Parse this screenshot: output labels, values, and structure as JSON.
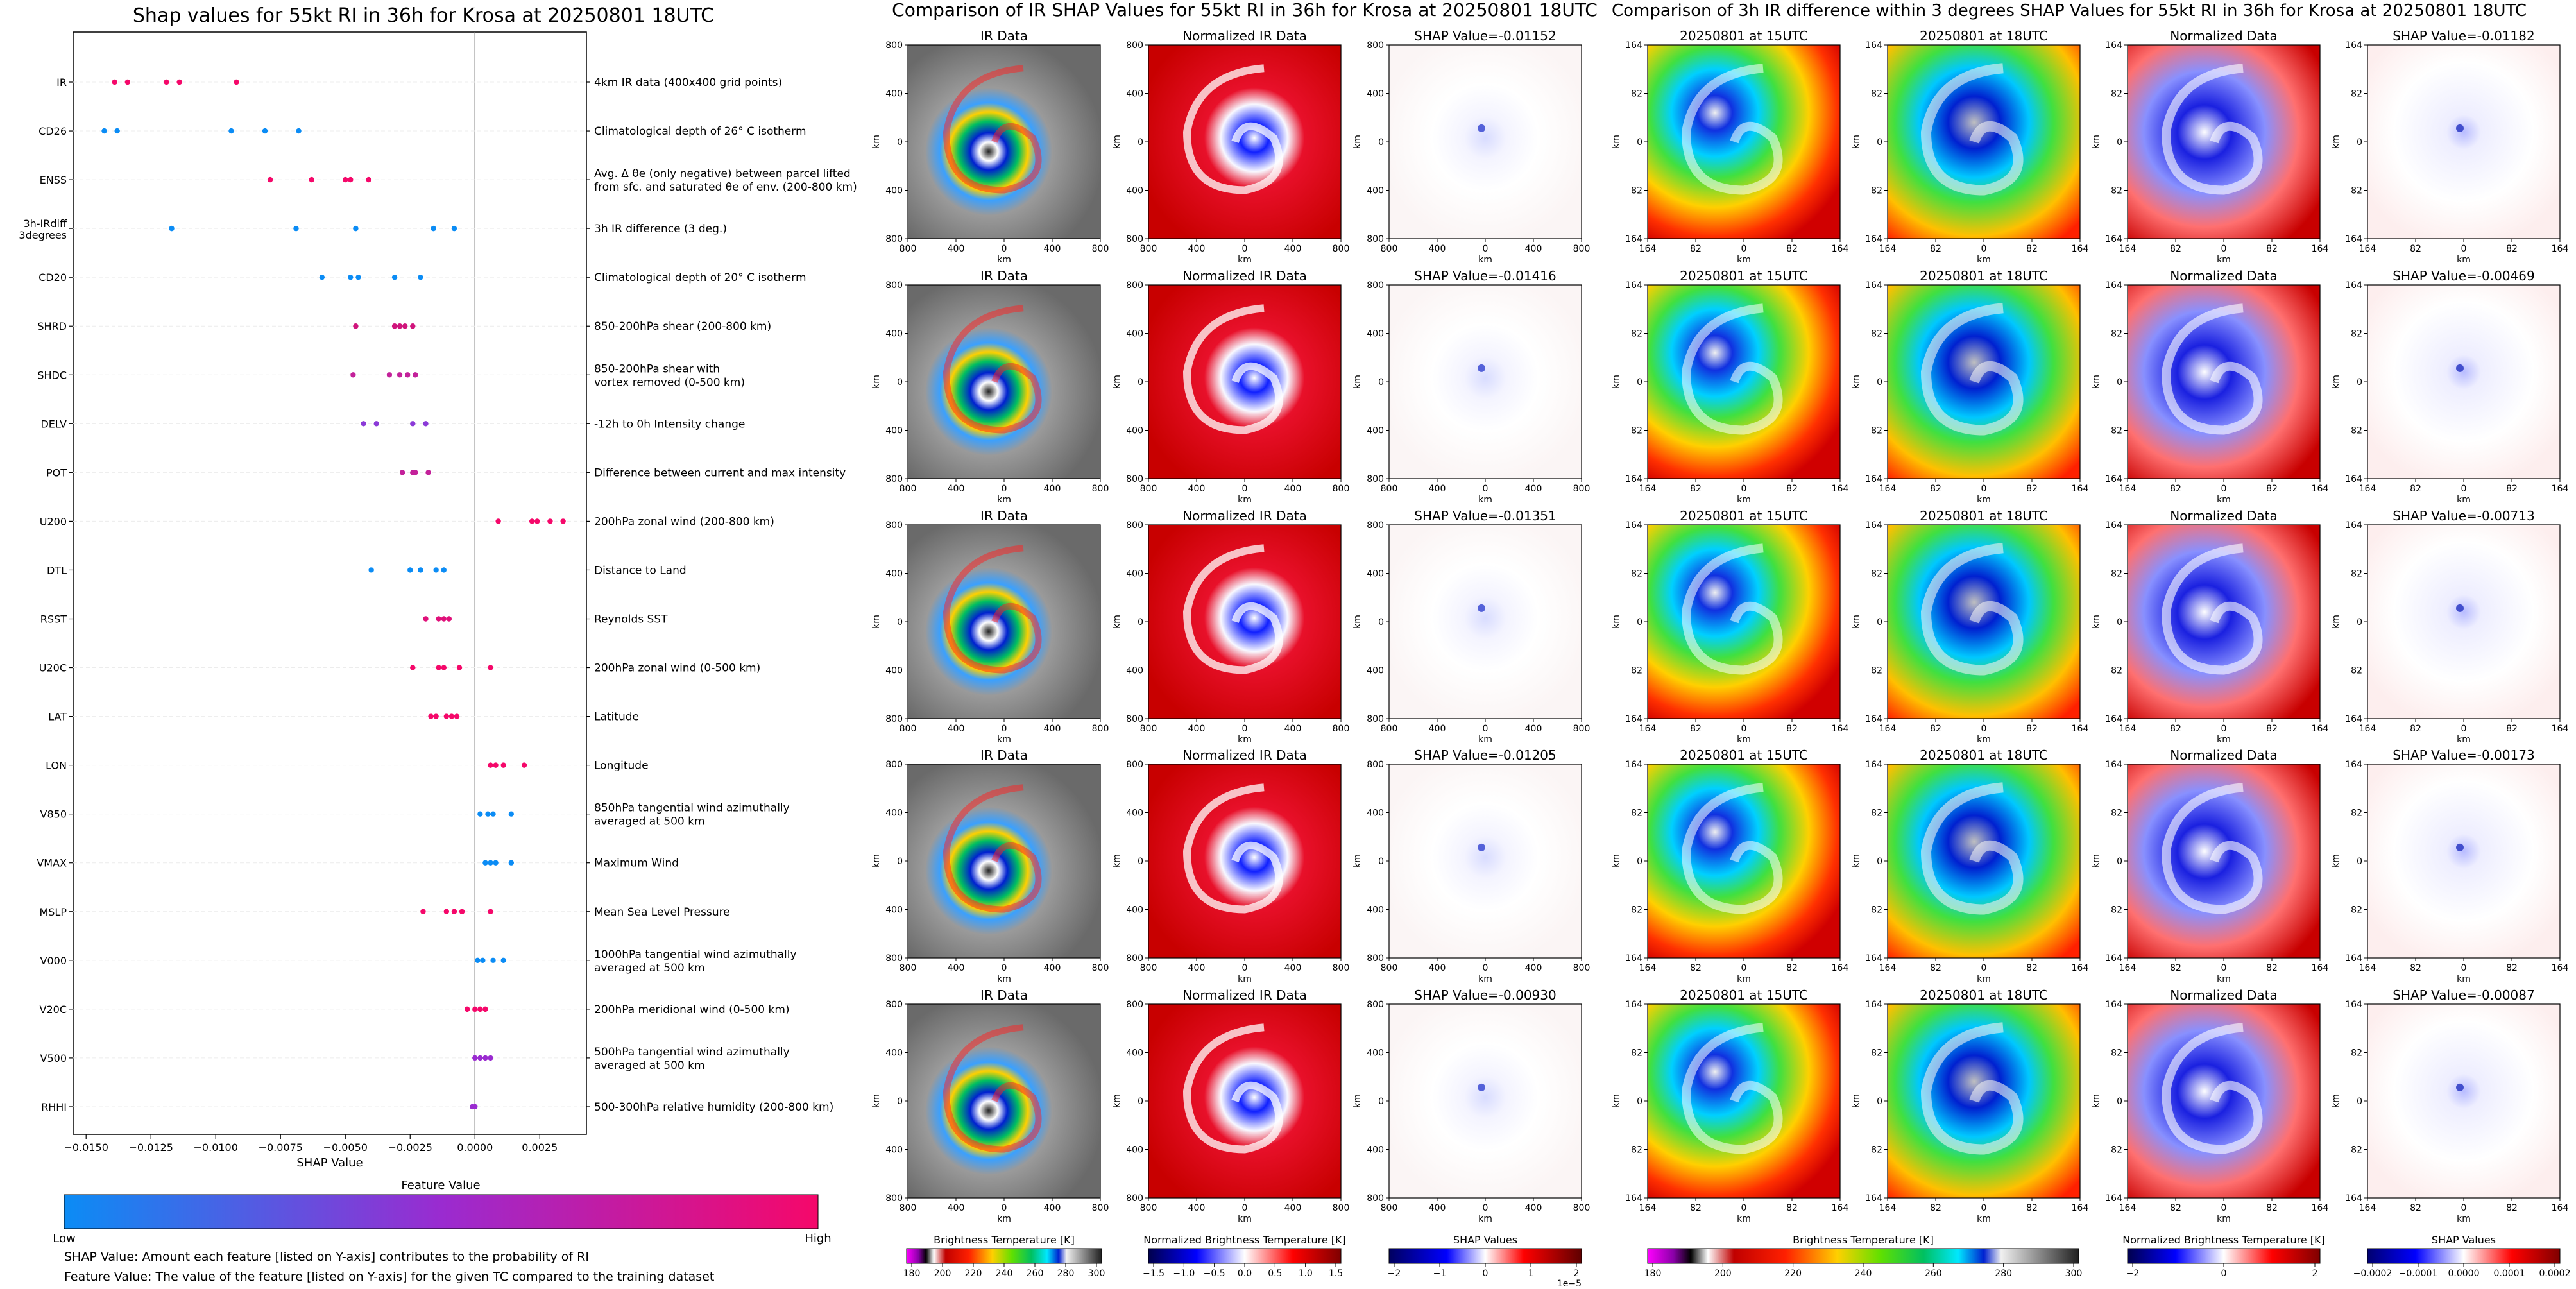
{
  "titles": {
    "shap": "Shap values for 55kt RI in 36h for Krosa at 20250801 18UTC",
    "ir": "Comparison of IR SHAP Values for 55kt RI in 36h for Krosa at 20250801 18UTC",
    "diff": "Comparison of 3h IR difference within 3 degrees SHAP Values for 55kt RI in 36h for Krosa at 20250801 18UTC"
  },
  "chart_data": [
    {
      "type": "scatter",
      "title": "Shap values for 55kt RI in 36h for Krosa at 20250801 18UTC",
      "xlabel": "SHAP Value",
      "ylabel": "",
      "xlim": [
        -0.0155,
        0.0043
      ],
      "xticks": [
        "−0.0150",
        "−0.0125",
        "−0.0100",
        "−0.0075",
        "−0.0050",
        "−0.0025",
        "0.0000",
        "0.0025"
      ],
      "xtick_values": [
        -0.015,
        -0.0125,
        -0.01,
        -0.0075,
        -0.005,
        -0.0025,
        0,
        0.0025
      ],
      "colorbar": {
        "title": "Feature Value",
        "low": "Low",
        "high": "High",
        "colors": [
          "#0b8cf5",
          "#9a2bd0",
          "#f5086a"
        ]
      },
      "notes": [
        "SHAP Value: Amount each feature [listed on Y-axis] contributes to the probability of RI",
        "Feature Value: The value of the feature [listed on Y-axis] for the given TC compared to the training dataset"
      ],
      "features": [
        {
          "name": "IR",
          "desc": [
            "4km IR data (400x400 grid points)"
          ],
          "shap": [
            -0.0139,
            -0.0134,
            -0.0119,
            -0.0114,
            -0.0092
          ],
          "colors": [
            "#f5086a",
            "#f5086a",
            "#f5086a",
            "#f5086a",
            "#f5086a"
          ]
        },
        {
          "name": "CD26",
          "desc": [
            "Climatological depth of 26° C isotherm"
          ],
          "shap": [
            -0.0143,
            -0.0138,
            -0.0094,
            -0.0081,
            -0.0068
          ],
          "colors": [
            "#0b8cf5",
            "#0b8cf5",
            "#0b8cf5",
            "#0b8cf5",
            "#0b8cf5"
          ]
        },
        {
          "name": "ENSS",
          "desc": [
            "Avg. Δ θe (only negative) between parcel lifted",
            "from sfc. and saturated θe of env. (200-800 km)"
          ],
          "shap": [
            -0.0079,
            -0.0063,
            -0.005,
            -0.0048,
            -0.0041
          ],
          "colors": [
            "#f5086a",
            "#f5086a",
            "#f5086a",
            "#f5086a",
            "#f5086a"
          ]
        },
        {
          "name": "3h-IRdiff 3degrees",
          "desc": [
            "3h IR difference (3 deg.)"
          ],
          "shap": [
            -0.0117,
            -0.0069,
            -0.0046,
            -0.0016,
            -0.0008
          ],
          "colors": [
            "#0b8cf5",
            "#0b8cf5",
            "#0b8cf5",
            "#0b8cf5",
            "#0b8cf5"
          ]
        },
        {
          "name": "CD20",
          "desc": [
            "Climatological depth of 20° C isotherm"
          ],
          "shap": [
            -0.0059,
            -0.0048,
            -0.0045,
            -0.0031,
            -0.0021
          ],
          "colors": [
            "#0b8cf5",
            "#0b8cf5",
            "#0b8cf5",
            "#0b8cf5",
            "#0b8cf5"
          ]
        },
        {
          "name": "SHRD",
          "desc": [
            "850-200hPa shear (200-800 km)"
          ],
          "shap": [
            -0.0046,
            -0.0031,
            -0.0029,
            -0.0027,
            -0.0024
          ],
          "colors": [
            "#d0157c",
            "#d0157c",
            "#d0157c",
            "#d0157c",
            "#d0157c"
          ]
        },
        {
          "name": "SHDC",
          "desc": [
            "850-200hPa shear with",
            "vortex removed (0-500 km)"
          ],
          "shap": [
            -0.0047,
            -0.0033,
            -0.0029,
            -0.0026,
            -0.0023
          ],
          "colors": [
            "#c3219a",
            "#c3219a",
            "#c3219a",
            "#c3219a",
            "#c3219a"
          ]
        },
        {
          "name": "DELV",
          "desc": [
            "-12h to 0h Intensity change"
          ],
          "shap": [
            -0.0043,
            -0.0038,
            -0.0024,
            -0.0019
          ],
          "colors": [
            "#8b3ad8",
            "#8b3ad8",
            "#8b3ad8",
            "#8b3ad8"
          ]
        },
        {
          "name": "POT",
          "desc": [
            "Difference between current and max intensity"
          ],
          "shap": [
            -0.0028,
            -0.0024,
            -0.0023,
            -0.0018
          ],
          "colors": [
            "#c3219a",
            "#c3219a",
            "#c3219a",
            "#c3219a"
          ]
        },
        {
          "name": "U200",
          "desc": [
            "200hPa zonal wind (200-800 km)"
          ],
          "shap": [
            0.0009,
            0.0022,
            0.0024,
            0.0029,
            0.0034
          ],
          "colors": [
            "#f5086a",
            "#f5086a",
            "#f5086a",
            "#f5086a",
            "#f5086a"
          ]
        },
        {
          "name": "DTL",
          "desc": [
            "Distance to Land"
          ],
          "shap": [
            -0.004,
            -0.0025,
            -0.0021,
            -0.0015,
            -0.0012
          ],
          "colors": [
            "#0b8cf5",
            "#0b8cf5",
            "#0b8cf5",
            "#0b8cf5",
            "#0b8cf5"
          ]
        },
        {
          "name": "RSST",
          "desc": [
            "Reynolds SST"
          ],
          "shap": [
            -0.0019,
            -0.0014,
            -0.0012,
            -0.001
          ],
          "colors": [
            "#e0107a",
            "#e0107a",
            "#e0107a",
            "#e0107a"
          ]
        },
        {
          "name": "U20C",
          "desc": [
            "200hPa zonal wind (0-500 km)"
          ],
          "shap": [
            -0.0024,
            -0.0014,
            -0.0012,
            -0.0006,
            0.0006
          ],
          "colors": [
            "#f5086a",
            "#f5086a",
            "#f5086a",
            "#f5086a",
            "#f5086a"
          ]
        },
        {
          "name": "LAT",
          "desc": [
            "Latitude"
          ],
          "shap": [
            -0.0017,
            -0.0015,
            -0.0011,
            -0.0009,
            -0.0007
          ],
          "colors": [
            "#f5086a",
            "#f5086a",
            "#f5086a",
            "#f5086a",
            "#f5086a"
          ]
        },
        {
          "name": "LON",
          "desc": [
            "Longitude"
          ],
          "shap": [
            0.0006,
            0.0008,
            0.0011,
            0.0019
          ],
          "colors": [
            "#f5086a",
            "#f5086a",
            "#f5086a",
            "#f5086a"
          ]
        },
        {
          "name": "V850",
          "desc": [
            "850hPa tangential wind azimuthally",
            "averaged at 500 km"
          ],
          "shap": [
            0.0002,
            0.0005,
            0.0007,
            0.0014
          ],
          "colors": [
            "#0b8cf5",
            "#0b8cf5",
            "#0b8cf5",
            "#0b8cf5"
          ]
        },
        {
          "name": "VMAX",
          "desc": [
            "Maximum Wind"
          ],
          "shap": [
            0.0004,
            0.0006,
            0.0008,
            0.0014
          ],
          "colors": [
            "#0b8cf5",
            "#0b8cf5",
            "#0b8cf5",
            "#0b8cf5"
          ]
        },
        {
          "name": "MSLP",
          "desc": [
            "Mean Sea Level Pressure"
          ],
          "shap": [
            -0.002,
            -0.0011,
            -0.0008,
            -0.0005,
            0.0006
          ],
          "colors": [
            "#f5086a",
            "#f5086a",
            "#f5086a",
            "#f5086a",
            "#f5086a"
          ]
        },
        {
          "name": "V000",
          "desc": [
            "1000hPa tangential wind azimuthally",
            "averaged at 500 km"
          ],
          "shap": [
            0.0001,
            0.0003,
            0.0007,
            0.0011
          ],
          "colors": [
            "#0b8cf5",
            "#0b8cf5",
            "#0b8cf5",
            "#0b8cf5"
          ]
        },
        {
          "name": "V20C",
          "desc": [
            "200hPa meridional wind (0-500 km)"
          ],
          "shap": [
            -0.0003,
            0.0,
            0.0002,
            0.0004
          ],
          "colors": [
            "#f5086a",
            "#f5086a",
            "#f5086a",
            "#f5086a"
          ]
        },
        {
          "name": "V500",
          "desc": [
            "500hPa tangential wind azimuthally",
            "averaged at 500 km"
          ],
          "shap": [
            0.0,
            0.0002,
            0.0004,
            0.0006
          ],
          "colors": [
            "#9a2bd0",
            "#9a2bd0",
            "#9a2bd0",
            "#9a2bd0"
          ]
        },
        {
          "name": "RHHI",
          "desc": [
            "500-300hPa relative humidity (200-800 km)"
          ],
          "shap": [
            -0.0001,
            0.0
          ],
          "colors": [
            "#9a2bd0",
            "#9a2bd0"
          ]
        }
      ]
    },
    {
      "type": "heatmap",
      "title": "Comparison of IR SHAP Values for 55kt RI in 36h for Krosa at 20250801 18UTC",
      "xlabel": "km",
      "ylabel": "km",
      "tick_labels": [
        "800",
        "400",
        "0",
        "400",
        "800"
      ],
      "column_titles": [
        "IR Data",
        "Normalized IR Data",
        "SHAP Value"
      ],
      "shap_values": [
        "SHAP Value=-0.01152",
        "SHAP Value=-0.01416",
        "SHAP Value=-0.01351",
        "SHAP Value=-0.01205",
        "SHAP Value=-0.00930"
      ],
      "colorbars": [
        {
          "title": "Brightness Temperature [K]",
          "ticks": [
            "180",
            "200",
            "220",
            "240",
            "260",
            "280",
            "300"
          ]
        },
        {
          "title": "Normalized Brightness Temperature [K]",
          "ticks": [
            "−1.5",
            "−1.0",
            "−0.5",
            "0.0",
            "0.5",
            "1.0",
            "1.5"
          ]
        },
        {
          "title": "SHAP Values",
          "ticks": [
            "−2",
            "−1",
            "0",
            "1",
            "2"
          ],
          "exponent": "1e−5"
        }
      ]
    },
    {
      "type": "heatmap",
      "title": "Comparison of 3h IR difference within 3 degrees SHAP Values for 55kt RI in 36h for Krosa at 20250801 18UTC",
      "xlabel": "km",
      "ylabel": "km",
      "tick_labels": [
        "164",
        "82",
        "0",
        "82",
        "164"
      ],
      "column_titles": [
        "20250801 at 15UTC",
        "20250801 at 18UTC",
        "Normalized Data",
        "SHAP Value"
      ],
      "shap_values": [
        "SHAP Value=-0.01182",
        "SHAP Value=-0.00469",
        "SHAP Value=-0.00713",
        "SHAP Value=-0.00173",
        "SHAP Value=-0.00087"
      ],
      "colorbars": [
        {
          "title": "Brightness Temperature [K]",
          "ticks": [
            "180",
            "200",
            "220",
            "240",
            "260",
            "280",
            "300"
          ]
        },
        {
          "title": "Normalized Brightness Temperature [K]",
          "ticks": [
            "−2",
            "0",
            "2"
          ]
        },
        {
          "title": "SHAP Values",
          "ticks": [
            "−0.0002",
            "−0.0001",
            "0.0000",
            "0.0001",
            "0.0002"
          ]
        }
      ]
    }
  ]
}
